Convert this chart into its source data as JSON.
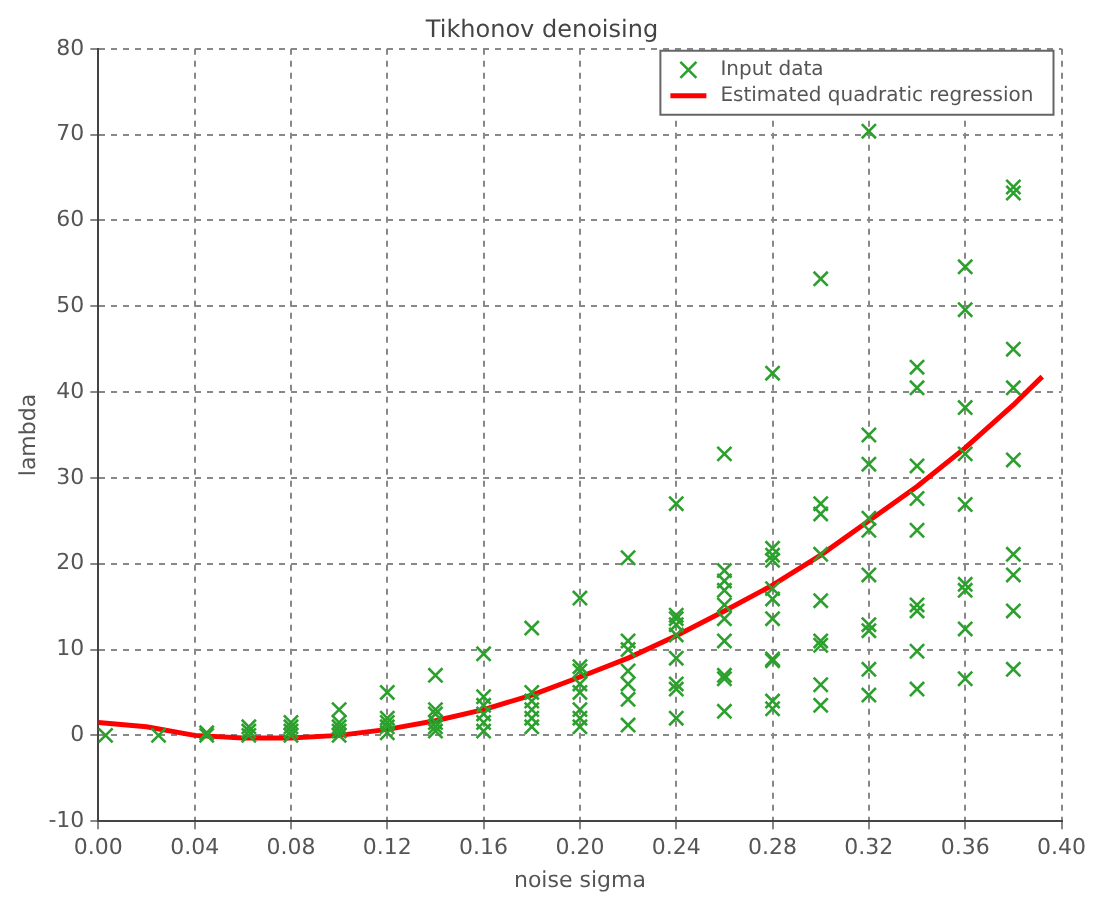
{
  "chart_data": {
    "type": "scatter",
    "title": "Tikhonov denoising",
    "xlabel": "noise sigma",
    "ylabel": "lambda",
    "xlim": [
      0,
      0.4
    ],
    "xticks": [
      {
        "value": 0,
        "label": "0.00"
      },
      {
        "value": 0.04,
        "label": "0.04"
      },
      {
        "value": 0.08,
        "label": "0.08"
      },
      {
        "value": 0.12,
        "label": "0.12"
      },
      {
        "value": 0.16,
        "label": "0.16"
      },
      {
        "value": 0.2,
        "label": "0.20"
      },
      {
        "value": 0.24,
        "label": "0.24"
      },
      {
        "value": 0.28,
        "label": "0.28"
      },
      {
        "value": 0.32,
        "label": "0.32"
      },
      {
        "value": 0.36,
        "label": "0.36"
      },
      {
        "value": 0.4,
        "label": "0.40"
      }
    ],
    "ylim": [
      -10,
      80
    ],
    "yticks": [
      -10,
      0,
      10,
      20,
      30,
      40,
      50,
      60,
      70,
      80
    ],
    "grid": true,
    "legend": "top right",
    "series": [
      {
        "name": "Input data",
        "type": "scatter",
        "marker": "cross",
        "color": "#2ca02c",
        "x": [
          0.003,
          0.025,
          0.045,
          0.045,
          0.0625,
          0.0625,
          0.0625,
          0.08,
          0.08,
          0.08,
          0.08,
          0.1,
          0.1,
          0.1,
          0.1,
          0.1,
          0.12,
          0.12,
          0.12,
          0.12,
          0.12,
          0.14,
          0.14,
          0.14,
          0.14,
          0.14,
          0.14,
          0.16,
          0.16,
          0.16,
          0.16,
          0.16,
          0.16,
          0.18,
          0.18,
          0.18,
          0.18,
          0.18,
          0.18,
          0.2,
          0.2,
          0.2,
          0.2,
          0.2,
          0.2,
          0.2,
          0.2,
          0.22,
          0.22,
          0.22,
          0.22,
          0.22,
          0.22,
          0.22,
          0.24,
          0.24,
          0.24,
          0.24,
          0.24,
          0.24,
          0.24,
          0.24,
          0.24,
          0.26,
          0.26,
          0.26,
          0.26,
          0.26,
          0.26,
          0.26,
          0.26,
          0.26,
          0.26,
          0.28,
          0.28,
          0.28,
          0.28,
          0.28,
          0.28,
          0.28,
          0.28,
          0.28,
          0.28,
          0.28,
          0.3,
          0.3,
          0.3,
          0.3,
          0.3,
          0.3,
          0.3,
          0.3,
          0.3,
          0.32,
          0.32,
          0.32,
          0.32,
          0.32,
          0.32,
          0.32,
          0.32,
          0.32,
          0.32,
          0.34,
          0.34,
          0.34,
          0.34,
          0.34,
          0.34,
          0.34,
          0.34,
          0.34,
          0.36,
          0.36,
          0.36,
          0.36,
          0.36,
          0.36,
          0.36,
          0.36,
          0.36,
          0.38,
          0.38,
          0.38,
          0.38,
          0.38,
          0.38,
          0.38,
          0.38,
          0.38
        ],
        "values": [
          0,
          0,
          0,
          0.3,
          0,
          0.5,
          1,
          0,
          0.5,
          1,
          1.5,
          0,
          0.5,
          1,
          1.5,
          3,
          0.3,
          1,
          1.5,
          2,
          5,
          0.5,
          1,
          1.5,
          2.5,
          3,
          7,
          0.5,
          1.5,
          2.5,
          3.5,
          4.5,
          9.5,
          1,
          2,
          3,
          4,
          5,
          12.5,
          1,
          2,
          3,
          5,
          6,
          7.5,
          8,
          16,
          20.7,
          11,
          10,
          7.5,
          6,
          4.2,
          1.2,
          27,
          14,
          13.6,
          12.9,
          11.7,
          9,
          6,
          5.4,
          2,
          32.8,
          19.2,
          18,
          16.9,
          15.2,
          13.6,
          11,
          7,
          6.6,
          2.8,
          42.2,
          21.8,
          21,
          20.4,
          17.1,
          15.9,
          13.6,
          8.9,
          8.7,
          4,
          3.1,
          53.2,
          27,
          25.8,
          21.1,
          15.7,
          11,
          10.5,
          5.9,
          3.5,
          70.4,
          35,
          31.6,
          25.3,
          23.9,
          18.7,
          12.9,
          12.2,
          7.7,
          4.7,
          42.9,
          40.5,
          31.4,
          27.6,
          23.9,
          15.2,
          14.5,
          9.8,
          5.4,
          54.6,
          49.6,
          38.2,
          32.8,
          26.9,
          17.6,
          16.9,
          12.4,
          6.6,
          63.9,
          63.2,
          45,
          40.5,
          32.1,
          21.1,
          18.7,
          14.5,
          7.7
        ]
      },
      {
        "name": "Estimated quadratic regression",
        "type": "line",
        "marker": "none",
        "color": "#ff0000",
        "x": [
          0,
          0.02,
          0.04,
          0.06,
          0.08,
          0.1,
          0.12,
          0.14,
          0.16,
          0.18,
          0.2,
          0.22,
          0.24,
          0.26,
          0.28,
          0.3,
          0.32,
          0.34,
          0.36,
          0.38,
          0.392
        ],
        "values": [
          1.5,
          1,
          0,
          -0.3,
          -0.3,
          0,
          0.7,
          1.7,
          3,
          4.7,
          6.8,
          9,
          11.6,
          14.5,
          17.5,
          21,
          25,
          29,
          33.5,
          38.5,
          41.8
        ]
      }
    ]
  }
}
